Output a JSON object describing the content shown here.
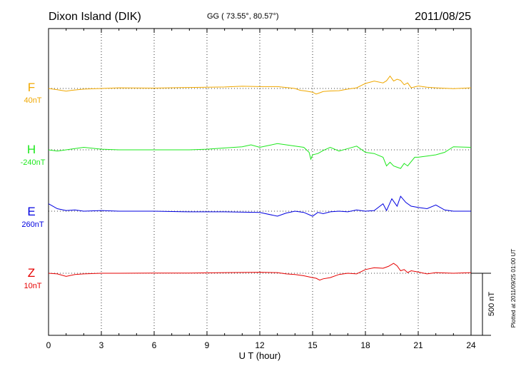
{
  "header": {
    "station": "Dixon Island (DIK)",
    "coords": "GG ( 73.55°,  80.57°)",
    "date": "2011/08/25"
  },
  "footer_note": "Plotted at 2011/09/25 01:00 UT",
  "chart_data": {
    "type": "line",
    "xlabel": "U T (hour)",
    "xlim": [
      0,
      24
    ],
    "xticks": [
      0,
      3,
      6,
      9,
      12,
      15,
      18,
      21,
      24
    ],
    "grid": true,
    "scale_bar_label": "500 nT",
    "series": [
      {
        "name": "F",
        "baseline_label": "40nT",
        "color": "#f0a800",
        "x": [
          0,
          0.5,
          1.0,
          1.3,
          2,
          3,
          4,
          6,
          8,
          10,
          11,
          12,
          13,
          13.5,
          14,
          14.3,
          14.6,
          15.0,
          15.2,
          15.4,
          15.6,
          16.0,
          16.5,
          17.0,
          17.5,
          18.0,
          18.5,
          19.0,
          19.2,
          19.4,
          19.6,
          19.8,
          20.0,
          20.2,
          20.4,
          20.6,
          21.0,
          21.5,
          22.0,
          23.0,
          24
        ],
        "values": [
          0,
          -10,
          -22,
          -15,
          -5,
          0,
          5,
          3,
          8,
          12,
          18,
          15,
          15,
          8,
          0,
          -15,
          -20,
          -30,
          -45,
          -35,
          -25,
          -20,
          -18,
          -5,
          5,
          40,
          60,
          45,
          62,
          100,
          60,
          75,
          65,
          30,
          45,
          5,
          20,
          10,
          5,
          -2,
          5
        ]
      },
      {
        "name": "H",
        "baseline_label": "-240nT",
        "color": "#1ee81e",
        "x": [
          0,
          0.5,
          1.0,
          1.5,
          2,
          3,
          4,
          6,
          8,
          9,
          10,
          11,
          11.5,
          12.0,
          12.5,
          13.0,
          13.5,
          14.0,
          14.5,
          14.8,
          14.9,
          15.0,
          15.3,
          15.6,
          16.0,
          16.5,
          17.0,
          17.5,
          18.0,
          18.5,
          19.0,
          19.2,
          19.4,
          19.6,
          19.8,
          20.0,
          20.2,
          20.4,
          20.8,
          21.0,
          21.5,
          22.0,
          22.5,
          23.0,
          24
        ],
        "values": [
          0,
          -10,
          0,
          10,
          20,
          5,
          0,
          0,
          0,
          5,
          15,
          25,
          40,
          20,
          35,
          50,
          40,
          30,
          20,
          -20,
          -75,
          -40,
          -30,
          -5,
          20,
          -10,
          10,
          30,
          -20,
          -30,
          -60,
          -130,
          -100,
          -130,
          -140,
          -150,
          -110,
          -130,
          -60,
          -60,
          -50,
          -40,
          -20,
          25,
          20
        ]
      },
      {
        "name": "E",
        "baseline_label": "260nT",
        "color": "#0000e0",
        "x": [
          0,
          0.5,
          1.0,
          1.5,
          2,
          3,
          4,
          6,
          8,
          10,
          12,
          13,
          13.5,
          14.0,
          14.5,
          15.0,
          15.3,
          15.6,
          16.0,
          16.5,
          17.0,
          17.5,
          18.0,
          18.5,
          19.0,
          19.2,
          19.5,
          19.8,
          20.0,
          20.3,
          20.6,
          21.0,
          21.5,
          22.0,
          22.5,
          23.0,
          24
        ],
        "values": [
          60,
          20,
          5,
          10,
          0,
          5,
          0,
          0,
          -5,
          -5,
          -10,
          -40,
          -15,
          0,
          -10,
          -40,
          -10,
          -20,
          -5,
          0,
          -5,
          10,
          0,
          5,
          60,
          5,
          100,
          40,
          120,
          70,
          40,
          30,
          20,
          50,
          10,
          0,
          0
        ]
      },
      {
        "name": "Z",
        "baseline_label": "10nT",
        "color": "#e60000",
        "x": [
          0,
          0.5,
          1.0,
          1.5,
          2,
          3,
          4,
          6,
          8,
          10,
          12,
          13,
          13.5,
          14.0,
          14.5,
          15.0,
          15.2,
          15.4,
          15.6,
          16.0,
          16.5,
          17.0,
          17.5,
          18.0,
          18.5,
          19.0,
          19.3,
          19.6,
          19.8,
          20.0,
          20.2,
          20.4,
          20.6,
          21.0,
          21.5,
          22.0,
          23.0,
          24
        ],
        "values": [
          0,
          -5,
          -25,
          -10,
          -5,
          0,
          0,
          2,
          2,
          5,
          8,
          5,
          -5,
          -10,
          -20,
          -35,
          -40,
          -55,
          -45,
          -35,
          -10,
          0,
          -5,
          30,
          45,
          40,
          55,
          80,
          60,
          20,
          30,
          5,
          20,
          10,
          -5,
          5,
          0,
          5
        ]
      }
    ]
  }
}
